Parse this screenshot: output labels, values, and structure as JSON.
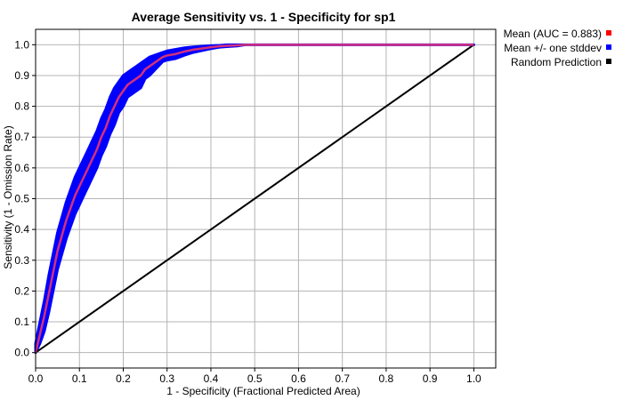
{
  "chart_data": {
    "type": "line",
    "title": "Average Sensitivity vs. 1 - Specificity for sp1",
    "xlabel": "1 - Specificity (Fractional Predicted Area)",
    "ylabel": "Sensitivity (1 - Omission Rate)",
    "xlim": [
      0,
      1.05
    ],
    "ylim": [
      -0.05,
      1.05
    ],
    "xticks": [
      "0.0",
      "0.1",
      "0.2",
      "0.3",
      "0.4",
      "0.5",
      "0.6",
      "0.7",
      "0.8",
      "0.9",
      "1.0"
    ],
    "yticks": [
      "0.0",
      "0.1",
      "0.2",
      "0.3",
      "0.4",
      "0.5",
      "0.6",
      "0.7",
      "0.8",
      "0.9",
      "1.0"
    ],
    "grid": true,
    "legend_position": "outside-top-right",
    "series": [
      {
        "name": "Mean (AUC = 0.883)",
        "color": "#ff0000",
        "role": "mean",
        "x": [
          0,
          0.01,
          0.02,
          0.03,
          0.04,
          0.05,
          0.06,
          0.07,
          0.08,
          0.09,
          0.1,
          0.11,
          0.12,
          0.13,
          0.14,
          0.15,
          0.16,
          0.17,
          0.18,
          0.19,
          0.2,
          0.21,
          0.22,
          0.23,
          0.24,
          0.25,
          0.26,
          0.27,
          0.28,
          0.29,
          0.3,
          0.32,
          0.34,
          0.36,
          0.38,
          0.4,
          0.42,
          0.44,
          0.46,
          0.48,
          0.5,
          1.0
        ],
        "y": [
          0,
          0.06,
          0.12,
          0.19,
          0.26,
          0.33,
          0.38,
          0.43,
          0.47,
          0.51,
          0.54,
          0.57,
          0.6,
          0.63,
          0.66,
          0.7,
          0.73,
          0.77,
          0.8,
          0.83,
          0.85,
          0.87,
          0.88,
          0.89,
          0.9,
          0.92,
          0.93,
          0.94,
          0.95,
          0.96,
          0.965,
          0.97,
          0.978,
          0.984,
          0.988,
          0.992,
          0.995,
          0.997,
          0.998,
          1.0,
          1.0,
          1.0
        ]
      },
      {
        "name": "Mean +/- one stddev",
        "color": "#0000ff",
        "role": "band",
        "x": [
          0,
          0.01,
          0.02,
          0.03,
          0.04,
          0.05,
          0.06,
          0.07,
          0.08,
          0.09,
          0.1,
          0.11,
          0.12,
          0.13,
          0.14,
          0.15,
          0.16,
          0.17,
          0.18,
          0.19,
          0.2,
          0.21,
          0.22,
          0.23,
          0.24,
          0.25,
          0.26,
          0.27,
          0.28,
          0.29,
          0.3,
          0.32,
          0.34,
          0.36,
          0.38,
          0.4,
          0.42,
          0.44,
          0.46,
          0.48,
          0.5,
          1.0
        ],
        "upper": [
          0.03,
          0.1,
          0.17,
          0.25,
          0.32,
          0.39,
          0.44,
          0.49,
          0.53,
          0.57,
          0.6,
          0.63,
          0.66,
          0.69,
          0.72,
          0.76,
          0.79,
          0.83,
          0.86,
          0.88,
          0.9,
          0.91,
          0.92,
          0.93,
          0.94,
          0.95,
          0.96,
          0.965,
          0.97,
          0.975,
          0.98,
          0.985,
          0.99,
          0.993,
          0.995,
          0.997,
          0.998,
          1.0,
          1.0,
          1.0,
          1.0,
          1.0
        ],
        "lower": [
          0,
          0.03,
          0.07,
          0.13,
          0.2,
          0.27,
          0.32,
          0.37,
          0.41,
          0.45,
          0.48,
          0.51,
          0.54,
          0.57,
          0.6,
          0.64,
          0.67,
          0.71,
          0.74,
          0.78,
          0.8,
          0.83,
          0.84,
          0.85,
          0.86,
          0.89,
          0.9,
          0.915,
          0.93,
          0.945,
          0.95,
          0.955,
          0.966,
          0.975,
          0.981,
          0.987,
          0.992,
          0.994,
          0.996,
          1.0,
          1.0,
          1.0
        ]
      },
      {
        "name": "Random Prediction",
        "color": "#000000",
        "role": "reference",
        "x": [
          0,
          1
        ],
        "y": [
          0,
          1
        ]
      }
    ]
  }
}
